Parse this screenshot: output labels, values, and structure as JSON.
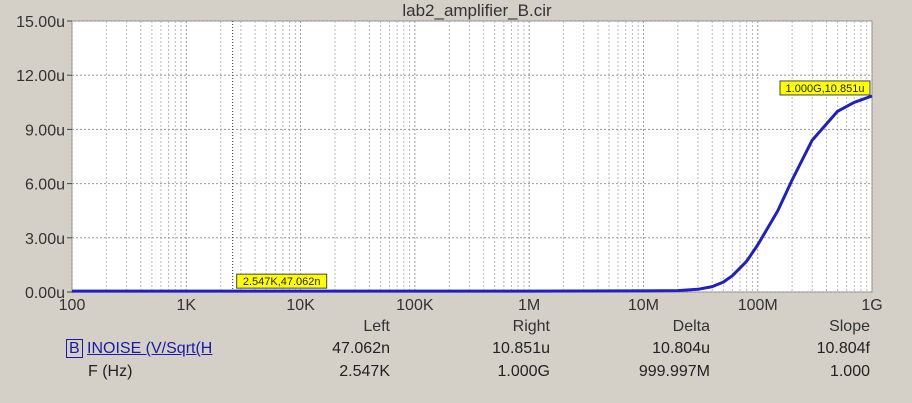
{
  "chart_data": {
    "type": "line",
    "title": "lab2_amplifier_B.cir",
    "xscale": "log",
    "xlim": [
      100,
      1000000000
    ],
    "ylim": [
      0,
      1.5e-05
    ],
    "xticks": [
      {
        "v": 100,
        "label": "100"
      },
      {
        "v": 1000,
        "label": "1K"
      },
      {
        "v": 10000,
        "label": "10K"
      },
      {
        "v": 100000,
        "label": "100K"
      },
      {
        "v": 1000000,
        "label": "1M"
      },
      {
        "v": 10000000,
        "label": "10M"
      },
      {
        "v": 100000000,
        "label": "100M"
      },
      {
        "v": 1000000000,
        "label": "1G"
      }
    ],
    "yticks": [
      {
        "v": 0,
        "label": "0.00u"
      },
      {
        "v": 3e-06,
        "label": "3.00u"
      },
      {
        "v": 6e-06,
        "label": "6.00u"
      },
      {
        "v": 9e-06,
        "label": "9.00u"
      },
      {
        "v": 1.2e-05,
        "label": "12.00u"
      },
      {
        "v": 1.5e-05,
        "label": "15.00u"
      }
    ],
    "grid": true,
    "line_color": "#1f1fc8",
    "series": [
      {
        "x": [
          100,
          1000,
          10000,
          1000000,
          10000000,
          20000000,
          30000000,
          40000000,
          50000000,
          60000000,
          80000000,
          100000000,
          150000000,
          200000000,
          300000000,
          500000000,
          700000000,
          1000000000
        ],
        "values": [
          5e-08,
          5e-08,
          5e-08,
          5e-08,
          6e-08,
          8e-08,
          1.5e-07,
          3e-07,
          5.5e-07,
          9e-07,
          1.7e-06,
          2.6e-06,
          4.5e-06,
          6.2e-06,
          8.4e-06,
          1e-05,
          1.05e-05,
          1.0851e-05
        ]
      }
    ],
    "annotations": [
      {
        "x": 2547,
        "y": 4.7062e-08,
        "text": "2.547K,47.062n",
        "color": "#ffff00"
      },
      {
        "x": 1000000000,
        "y": 1.0851e-05,
        "text": "1.000G,10.851u",
        "color": "#ffff00"
      }
    ]
  },
  "measurements": {
    "headers": {
      "left": "Left",
      "right": "Right",
      "delta": "Delta",
      "slope": "Slope"
    },
    "rows": [
      {
        "expr_box": "B",
        "name": "INOISE (V/Sqrt(H",
        "left": "47.062n",
        "right": "10.851u",
        "delta": "10.804u",
        "slope": "10.804f"
      },
      {
        "name": "F (Hz)",
        "left": "2.547K",
        "right": "1.000G",
        "delta": "999.997M",
        "slope": "1.000"
      }
    ]
  }
}
